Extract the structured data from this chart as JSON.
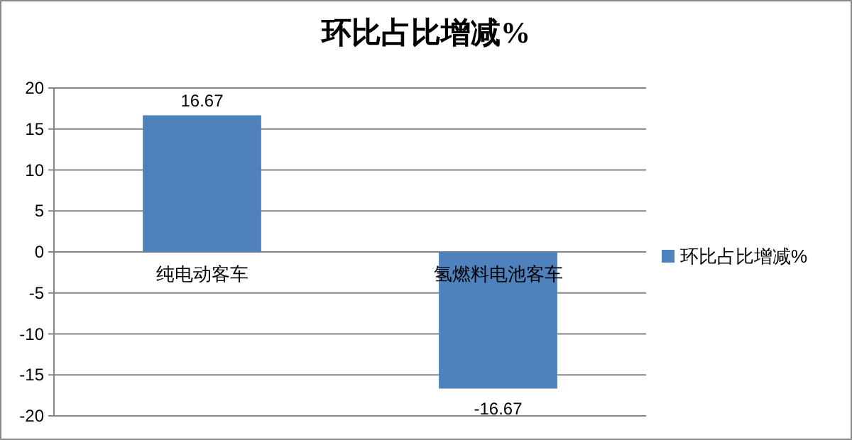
{
  "chart_data": {
    "type": "bar",
    "title": "环比占比增减%",
    "categories": [
      "纯电动客车",
      "氢燃料电池客车"
    ],
    "series": [
      {
        "name": "环比占比增减%",
        "color": "#4f81bd",
        "values": [
          16.67,
          -16.67
        ]
      }
    ],
    "ylim": [
      -20,
      20
    ],
    "yticks": [
      -20,
      -15,
      -10,
      -5,
      0,
      5,
      10,
      15,
      20
    ],
    "grid": "y",
    "legend": "right",
    "data_labels": true
  }
}
